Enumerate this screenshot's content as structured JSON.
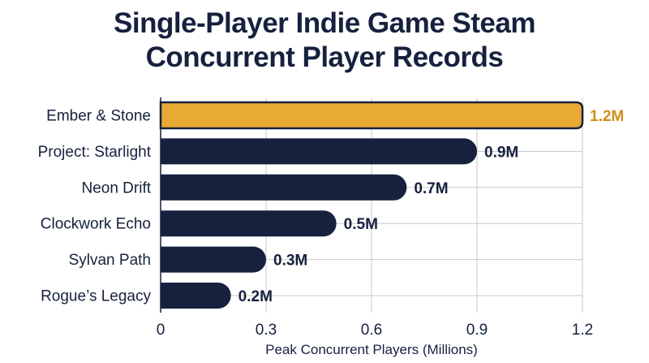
{
  "colors": {
    "highlight": "#e8a935",
    "bar": "#16213e",
    "text": "#16213e",
    "grid": "#c8c8c8",
    "highlight_label": "#d28f1c"
  },
  "chart_data": {
    "type": "bar",
    "orientation": "horizontal",
    "title_lines": [
      "Single-Player Indie Game Steam",
      "Concurrent Player Records"
    ],
    "categories": [
      "Ember & Stone",
      "Project: Starlight",
      "Neon Drift",
      "Clockwork Echo",
      "Sylvan Path",
      "Rogue’s Legacy"
    ],
    "values": [
      1.2,
      0.9,
      0.7,
      0.5,
      0.3,
      0.2
    ],
    "value_labels": [
      "1.2M",
      "0.9M",
      "0.7M",
      "0.5M",
      "0.3M",
      "0.2M"
    ],
    "highlighted_category": "Ember & Stone",
    "xlabel": "Peak Concurrent Players (Millions)",
    "ylabel": "",
    "xlim": [
      0,
      1.2
    ],
    "xticks": [
      0,
      0.3,
      0.6,
      0.9,
      1.2
    ],
    "xtick_labels": [
      "0",
      "0.3",
      "0.6",
      "0.9",
      "1.2"
    ],
    "grid": true
  }
}
